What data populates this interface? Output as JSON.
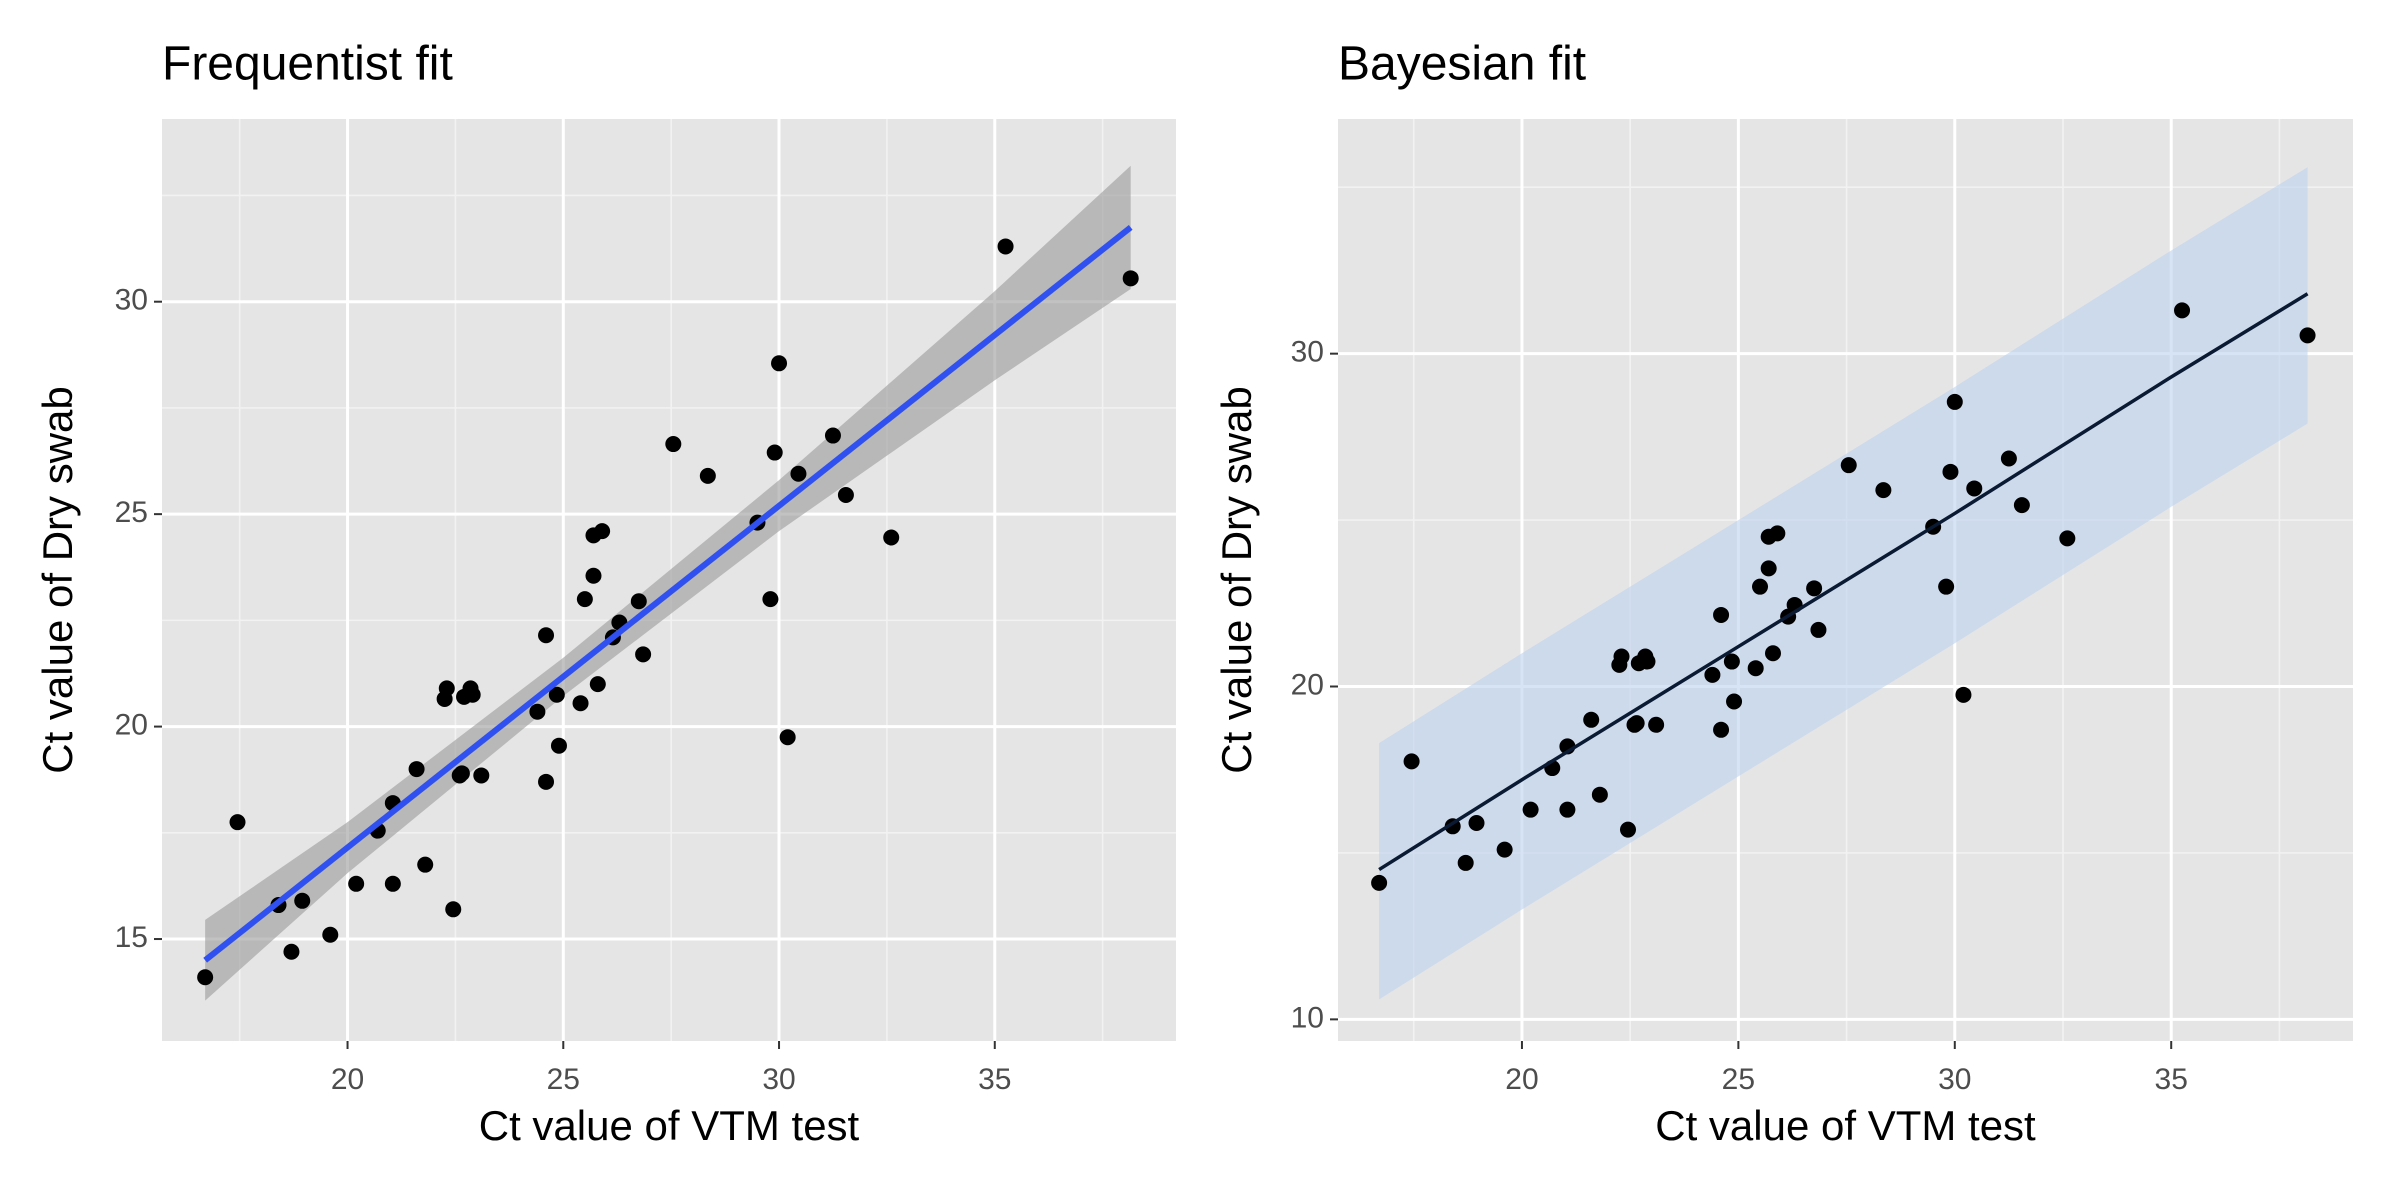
{
  "chart_data": [
    {
      "type": "scatter",
      "title": "Frequentist fit",
      "x_label": "Ct value of VTM test",
      "y_label": "Ct value of Dry swab",
      "xlim": [
        15.7,
        39.2
      ],
      "ylim": [
        12.6,
        34.3
      ],
      "xticks": [
        20,
        25,
        30,
        35
      ],
      "yticks": [
        15,
        20,
        25,
        30
      ],
      "grid": true,
      "points": {
        "color": "#000000",
        "x": [
          16.7,
          17.45,
          18.4,
          18.7,
          18.95,
          19.6,
          20.2,
          20.7,
          21.05,
          21.05,
          21.6,
          21.8,
          22.25,
          22.3,
          22.45,
          22.6,
          22.65,
          22.7,
          22.85,
          22.9,
          23.1,
          24.4,
          24.6,
          24.6,
          24.85,
          24.9,
          25.4,
          25.5,
          25.7,
          25.7,
          25.9,
          25.8,
          26.15,
          26.3,
          26.75,
          26.85,
          27.55,
          28.35,
          29.5,
          29.8,
          29.9,
          30.0,
          30.2,
          30.45,
          31.25,
          31.55,
          32.6,
          35.25,
          38.15
        ],
        "y": [
          14.1,
          17.75,
          15.8,
          14.7,
          15.9,
          15.1,
          16.3,
          17.55,
          18.2,
          16.3,
          19.0,
          16.75,
          20.65,
          20.9,
          15.7,
          18.85,
          18.9,
          20.7,
          20.9,
          20.75,
          18.85,
          20.35,
          18.7,
          22.15,
          20.75,
          19.55,
          20.55,
          23.0,
          23.55,
          24.5,
          24.6,
          21.0,
          22.1,
          22.45,
          22.95,
          21.7,
          26.65,
          25.9,
          24.8,
          23.0,
          26.45,
          28.55,
          19.75,
          25.95,
          26.85,
          25.45,
          24.45,
          31.3,
          30.55
        ]
      },
      "band": {
        "color": "#999999",
        "x": [
          16.7,
          20,
          25,
          30,
          35,
          38.15
        ],
        "lower": [
          13.55,
          16.55,
          20.72,
          24.6,
          28.15,
          30.3
        ],
        "upper": [
          15.45,
          17.75,
          21.62,
          25.8,
          30.25,
          33.2
        ]
      },
      "fit": {
        "color": "#3050f0",
        "x": [
          16.7,
          38.15
        ],
        "y": [
          14.5,
          31.75
        ]
      }
    },
    {
      "type": "scatter",
      "title": "Bayesian fit",
      "x_label": "Ct value of VTM test",
      "y_label": "Ct value of Dry swab",
      "xlim": [
        15.75,
        39.2
      ],
      "ylim": [
        9.35,
        37.05
      ],
      "xticks": [
        20,
        25,
        30,
        35
      ],
      "yticks": [
        10,
        20,
        30
      ],
      "grid": true,
      "points": {
        "color": "#000000",
        "x": [
          16.7,
          17.45,
          18.4,
          18.7,
          18.95,
          19.6,
          20.2,
          20.7,
          21.05,
          21.05,
          21.6,
          21.8,
          22.25,
          22.3,
          22.45,
          22.6,
          22.65,
          22.7,
          22.85,
          22.9,
          23.1,
          24.4,
          24.6,
          24.6,
          24.85,
          24.9,
          25.4,
          25.5,
          25.7,
          25.7,
          25.9,
          25.8,
          26.15,
          26.3,
          26.75,
          26.85,
          27.55,
          28.35,
          29.5,
          29.8,
          29.9,
          30.0,
          30.2,
          30.45,
          31.25,
          31.55,
          32.6,
          35.25,
          38.15
        ],
        "y": [
          14.1,
          17.75,
          15.8,
          14.7,
          15.9,
          15.1,
          16.3,
          17.55,
          18.2,
          16.3,
          19.0,
          16.75,
          20.65,
          20.9,
          15.7,
          18.85,
          18.9,
          20.7,
          20.9,
          20.75,
          18.85,
          20.35,
          18.7,
          22.15,
          20.75,
          19.55,
          20.55,
          23.0,
          23.55,
          24.5,
          24.6,
          21.0,
          22.1,
          22.45,
          22.95,
          21.7,
          26.65,
          25.9,
          24.8,
          23.0,
          26.45,
          28.55,
          19.75,
          25.95,
          26.85,
          25.45,
          24.45,
          31.3,
          30.55
        ]
      },
      "band": {
        "color": "#bcd2ef",
        "x": [
          16.7,
          20,
          25,
          30,
          35,
          38.15
        ],
        "lower": [
          10.6,
          13.3,
          17.3,
          21.3,
          25.4,
          27.9
        ],
        "upper": [
          18.3,
          21.0,
          25.0,
          29.0,
          33.1,
          35.6
        ]
      },
      "fit": {
        "color": "#0b1a33",
        "x": [
          16.7,
          20,
          25,
          30,
          35,
          38.15
        ],
        "y": [
          14.5,
          17.2,
          21.2,
          25.2,
          29.3,
          31.8
        ]
      }
    }
  ]
}
